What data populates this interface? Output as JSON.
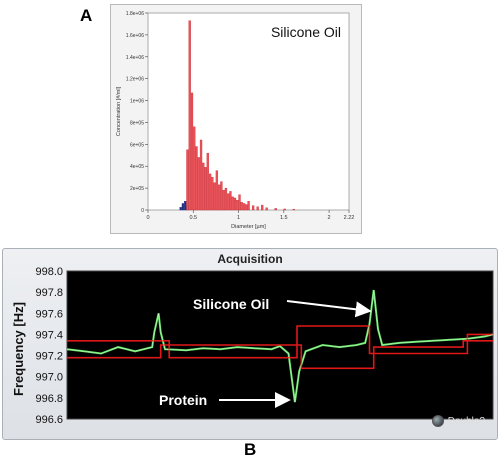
{
  "panels": {
    "a_letter": "A",
    "b_letter": "B"
  },
  "colors": {
    "bar_red": "#e8545a",
    "bar_outline": "#c82028",
    "bar_blue": "#203080",
    "trace_green": "#5fe060",
    "trace_red": "#e01818",
    "plot_bg_dark": "#000000"
  },
  "chart_data": [
    {
      "type": "bar",
      "title": "",
      "annotation": "Silicone Oil",
      "xlabel": "Diameter [µm]",
      "ylabel": "Concentration [#/ml]",
      "xlim": [
        0,
        2.22
      ],
      "ylim": [
        0,
        1800000
      ],
      "xticks": [
        0,
        0.5,
        1,
        1.5,
        2,
        2.22
      ],
      "xtick_labels": [
        "0",
        "0.5",
        "1",
        "1.5",
        "2",
        "2.22"
      ],
      "yticks": [
        0,
        200000,
        400000,
        600000,
        800000,
        1000000,
        1200000,
        1400000,
        1600000,
        1800000
      ],
      "ytick_labels": [
        "0",
        "2e+05",
        "4e+05",
        "6e+05",
        "8e+05",
        "1e+06",
        "1.2e+06",
        "1.4e+06",
        "1.6e+06",
        "1.8e+06"
      ],
      "bin_width": 0.025,
      "series": [
        {
          "color": "blue",
          "x": [
            0.35,
            0.375,
            0.4,
            0.425
          ],
          "values": [
            25000,
            60000,
            80000,
            40000
          ]
        },
        {
          "color": "red",
          "x": [
            0.425,
            0.45,
            0.475,
            0.5,
            0.525,
            0.55,
            0.575,
            0.6,
            0.625,
            0.65,
            0.675,
            0.7,
            0.725,
            0.75,
            0.775,
            0.8,
            0.825,
            0.85,
            0.875,
            0.9,
            0.925,
            0.95,
            0.975,
            1.0,
            1.025,
            1.05,
            1.075,
            1.1,
            1.15,
            1.2,
            1.25,
            1.3,
            1.4,
            1.5,
            1.6
          ],
          "values": [
            550000,
            1730000,
            1070000,
            760000,
            580000,
            480000,
            640000,
            430000,
            390000,
            520000,
            330000,
            300000,
            250000,
            360000,
            230000,
            260000,
            180000,
            200000,
            150000,
            170000,
            120000,
            110000,
            90000,
            140000,
            70000,
            60000,
            50000,
            80000,
            40000,
            30000,
            45000,
            20000,
            15000,
            10000,
            8000
          ]
        }
      ]
    },
    {
      "type": "line",
      "title": "Acquisition",
      "xlabel": "",
      "ylabel": "Frequency [Hz]",
      "ylim": [
        996.6,
        998.0
      ],
      "yticks": [
        996.6,
        996.8,
        997.0,
        997.2,
        997.4,
        997.6,
        997.8,
        998.0
      ],
      "ytick_labels": [
        "996.6",
        "996.8",
        "997.0",
        "997.2",
        "997.4",
        "997.6",
        "997.8",
        "998.0"
      ],
      "annotations": [
        {
          "text": "Silicone Oil",
          "points_to_x": 0.72
        },
        {
          "text": "Protein",
          "points_to_x": 0.535
        }
      ],
      "checkbox_label": "Double?",
      "series": [
        {
          "color": "green",
          "x": [
            0.0,
            0.04,
            0.08,
            0.12,
            0.16,
            0.2,
            0.205,
            0.215,
            0.22,
            0.23,
            0.28,
            0.32,
            0.36,
            0.4,
            0.44,
            0.48,
            0.5,
            0.52,
            0.535,
            0.545,
            0.56,
            0.6,
            0.64,
            0.68,
            0.7,
            0.71,
            0.72,
            0.73,
            0.74,
            0.78,
            0.82,
            0.86,
            0.9,
            0.94,
            0.98,
            1.0
          ],
          "values": [
            997.26,
            997.24,
            997.22,
            997.28,
            997.24,
            997.28,
            997.42,
            997.6,
            997.42,
            997.26,
            997.25,
            997.27,
            997.26,
            997.28,
            997.27,
            997.26,
            997.29,
            997.22,
            996.76,
            997.05,
            997.24,
            997.3,
            997.28,
            997.3,
            997.32,
            997.5,
            997.82,
            997.45,
            997.3,
            997.32,
            997.33,
            997.34,
            997.35,
            997.36,
            997.38,
            997.4
          ]
        },
        {
          "color": "red",
          "x": [
            0.0,
            0.24,
            0.24,
            0.54,
            0.54,
            0.71,
            0.71,
            0.94,
            0.94,
            1.0
          ],
          "values": [
            997.34,
            997.34,
            997.18,
            997.18,
            997.48,
            997.48,
            997.22,
            997.22,
            997.4,
            997.4
          ]
        },
        {
          "color": "red",
          "x": [
            0.0,
            0.22,
            0.22,
            0.55,
            0.55,
            0.72,
            0.72,
            0.93,
            0.93,
            1.0
          ],
          "values": [
            997.18,
            997.18,
            997.3,
            997.3,
            997.08,
            997.08,
            997.28,
            997.28,
            997.34,
            997.34
          ]
        }
      ]
    }
  ]
}
